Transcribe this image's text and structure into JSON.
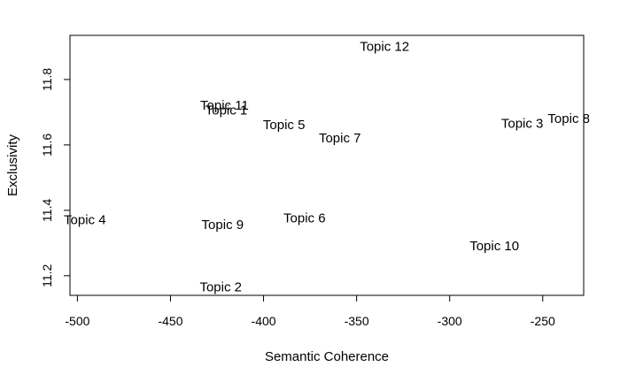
{
  "chart_data": {
    "type": "scatter",
    "xlabel": "Semantic Coherence",
    "ylabel": "Exclusivity",
    "xlim": [
      -504,
      -228
    ],
    "ylim": [
      11.14,
      11.935
    ],
    "xticks": [
      -500,
      -450,
      -400,
      -350,
      -300,
      -250
    ],
    "yticks": [
      11.2,
      11.4,
      11.6,
      11.8
    ],
    "grid": false,
    "legend": "none",
    "points": [
      {
        "label": "Topic 1",
        "x": -420,
        "y": 11.705
      },
      {
        "label": "Topic 2",
        "x": -423,
        "y": 11.165
      },
      {
        "label": "Topic 3",
        "x": -261,
        "y": 11.665
      },
      {
        "label": "Topic 4",
        "x": -496,
        "y": 11.37
      },
      {
        "label": "Topic 5",
        "x": -389,
        "y": 11.66
      },
      {
        "label": "Topic 6",
        "x": -378,
        "y": 11.375
      },
      {
        "label": "Topic 7",
        "x": -359,
        "y": 11.62
      },
      {
        "label": "Topic 8",
        "x": -236,
        "y": 11.68
      },
      {
        "label": "Topic 9",
        "x": -422,
        "y": 11.355
      },
      {
        "label": "Topic 10",
        "x": -276,
        "y": 11.29
      },
      {
        "label": "Topic 11",
        "x": -421,
        "y": 11.72
      },
      {
        "label": "Topic 12",
        "x": -335,
        "y": 11.9
      }
    ]
  }
}
